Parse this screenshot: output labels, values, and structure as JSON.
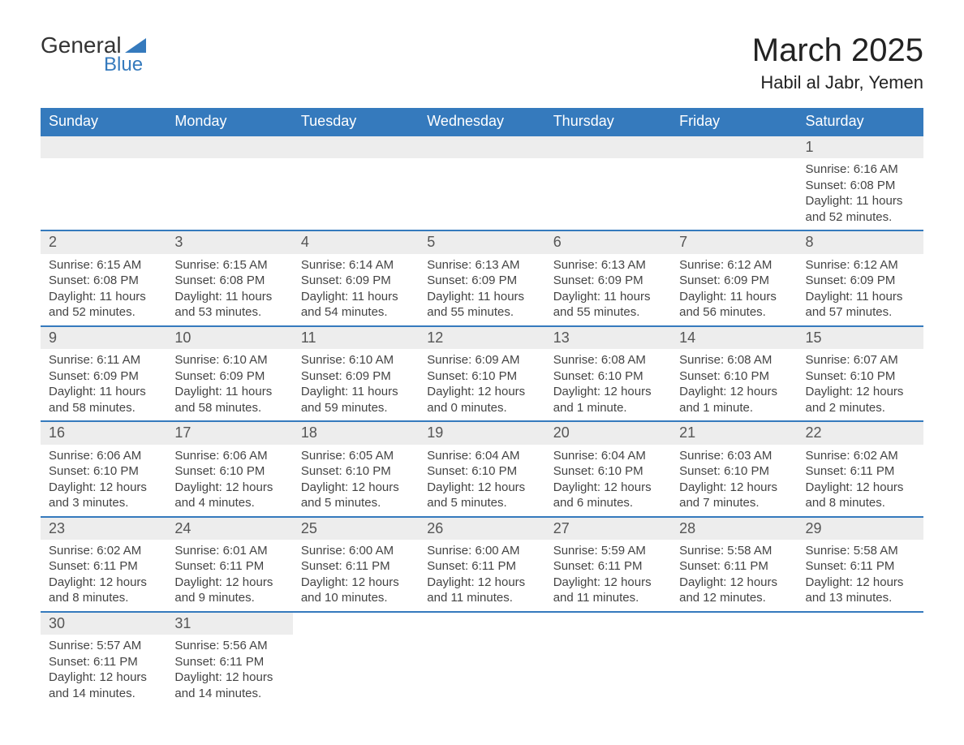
{
  "brand": {
    "name1": "General",
    "name2": "Blue",
    "triangle_color": "#357abd"
  },
  "title": "March 2025",
  "location": "Habil al Jabr, Yemen",
  "colors": {
    "header_bg": "#357abd",
    "header_text": "#ffffff",
    "daynum_bg": "#ededed",
    "border": "#357abd",
    "body_text": "#444444"
  },
  "typography": {
    "month_title_pt": 40,
    "location_pt": 22,
    "dayheader_pt": 18,
    "daynum_pt": 18,
    "details_pt": 15
  },
  "day_headers": [
    "Sunday",
    "Monday",
    "Tuesday",
    "Wednesday",
    "Thursday",
    "Friday",
    "Saturday"
  ],
  "weeks": [
    [
      null,
      null,
      null,
      null,
      null,
      null,
      {
        "n": "1",
        "sr": "Sunrise: 6:16 AM",
        "ss": "Sunset: 6:08 PM",
        "dl": "Daylight: 11 hours and 52 minutes."
      }
    ],
    [
      {
        "n": "2",
        "sr": "Sunrise: 6:15 AM",
        "ss": "Sunset: 6:08 PM",
        "dl": "Daylight: 11 hours and 52 minutes."
      },
      {
        "n": "3",
        "sr": "Sunrise: 6:15 AM",
        "ss": "Sunset: 6:08 PM",
        "dl": "Daylight: 11 hours and 53 minutes."
      },
      {
        "n": "4",
        "sr": "Sunrise: 6:14 AM",
        "ss": "Sunset: 6:09 PM",
        "dl": "Daylight: 11 hours and 54 minutes."
      },
      {
        "n": "5",
        "sr": "Sunrise: 6:13 AM",
        "ss": "Sunset: 6:09 PM",
        "dl": "Daylight: 11 hours and 55 minutes."
      },
      {
        "n": "6",
        "sr": "Sunrise: 6:13 AM",
        "ss": "Sunset: 6:09 PM",
        "dl": "Daylight: 11 hours and 55 minutes."
      },
      {
        "n": "7",
        "sr": "Sunrise: 6:12 AM",
        "ss": "Sunset: 6:09 PM",
        "dl": "Daylight: 11 hours and 56 minutes."
      },
      {
        "n": "8",
        "sr": "Sunrise: 6:12 AM",
        "ss": "Sunset: 6:09 PM",
        "dl": "Daylight: 11 hours and 57 minutes."
      }
    ],
    [
      {
        "n": "9",
        "sr": "Sunrise: 6:11 AM",
        "ss": "Sunset: 6:09 PM",
        "dl": "Daylight: 11 hours and 58 minutes."
      },
      {
        "n": "10",
        "sr": "Sunrise: 6:10 AM",
        "ss": "Sunset: 6:09 PM",
        "dl": "Daylight: 11 hours and 58 minutes."
      },
      {
        "n": "11",
        "sr": "Sunrise: 6:10 AM",
        "ss": "Sunset: 6:09 PM",
        "dl": "Daylight: 11 hours and 59 minutes."
      },
      {
        "n": "12",
        "sr": "Sunrise: 6:09 AM",
        "ss": "Sunset: 6:10 PM",
        "dl": "Daylight: 12 hours and 0 minutes."
      },
      {
        "n": "13",
        "sr": "Sunrise: 6:08 AM",
        "ss": "Sunset: 6:10 PM",
        "dl": "Daylight: 12 hours and 1 minute."
      },
      {
        "n": "14",
        "sr": "Sunrise: 6:08 AM",
        "ss": "Sunset: 6:10 PM",
        "dl": "Daylight: 12 hours and 1 minute."
      },
      {
        "n": "15",
        "sr": "Sunrise: 6:07 AM",
        "ss": "Sunset: 6:10 PM",
        "dl": "Daylight: 12 hours and 2 minutes."
      }
    ],
    [
      {
        "n": "16",
        "sr": "Sunrise: 6:06 AM",
        "ss": "Sunset: 6:10 PM",
        "dl": "Daylight: 12 hours and 3 minutes."
      },
      {
        "n": "17",
        "sr": "Sunrise: 6:06 AM",
        "ss": "Sunset: 6:10 PM",
        "dl": "Daylight: 12 hours and 4 minutes."
      },
      {
        "n": "18",
        "sr": "Sunrise: 6:05 AM",
        "ss": "Sunset: 6:10 PM",
        "dl": "Daylight: 12 hours and 5 minutes."
      },
      {
        "n": "19",
        "sr": "Sunrise: 6:04 AM",
        "ss": "Sunset: 6:10 PM",
        "dl": "Daylight: 12 hours and 5 minutes."
      },
      {
        "n": "20",
        "sr": "Sunrise: 6:04 AM",
        "ss": "Sunset: 6:10 PM",
        "dl": "Daylight: 12 hours and 6 minutes."
      },
      {
        "n": "21",
        "sr": "Sunrise: 6:03 AM",
        "ss": "Sunset: 6:10 PM",
        "dl": "Daylight: 12 hours and 7 minutes."
      },
      {
        "n": "22",
        "sr": "Sunrise: 6:02 AM",
        "ss": "Sunset: 6:11 PM",
        "dl": "Daylight: 12 hours and 8 minutes."
      }
    ],
    [
      {
        "n": "23",
        "sr": "Sunrise: 6:02 AM",
        "ss": "Sunset: 6:11 PM",
        "dl": "Daylight: 12 hours and 8 minutes."
      },
      {
        "n": "24",
        "sr": "Sunrise: 6:01 AM",
        "ss": "Sunset: 6:11 PM",
        "dl": "Daylight: 12 hours and 9 minutes."
      },
      {
        "n": "25",
        "sr": "Sunrise: 6:00 AM",
        "ss": "Sunset: 6:11 PM",
        "dl": "Daylight: 12 hours and 10 minutes."
      },
      {
        "n": "26",
        "sr": "Sunrise: 6:00 AM",
        "ss": "Sunset: 6:11 PM",
        "dl": "Daylight: 12 hours and 11 minutes."
      },
      {
        "n": "27",
        "sr": "Sunrise: 5:59 AM",
        "ss": "Sunset: 6:11 PM",
        "dl": "Daylight: 12 hours and 11 minutes."
      },
      {
        "n": "28",
        "sr": "Sunrise: 5:58 AM",
        "ss": "Sunset: 6:11 PM",
        "dl": "Daylight: 12 hours and 12 minutes."
      },
      {
        "n": "29",
        "sr": "Sunrise: 5:58 AM",
        "ss": "Sunset: 6:11 PM",
        "dl": "Daylight: 12 hours and 13 minutes."
      }
    ],
    [
      {
        "n": "30",
        "sr": "Sunrise: 5:57 AM",
        "ss": "Sunset: 6:11 PM",
        "dl": "Daylight: 12 hours and 14 minutes."
      },
      {
        "n": "31",
        "sr": "Sunrise: 5:56 AM",
        "ss": "Sunset: 6:11 PM",
        "dl": "Daylight: 12 hours and 14 minutes."
      },
      null,
      null,
      null,
      null,
      null
    ]
  ]
}
